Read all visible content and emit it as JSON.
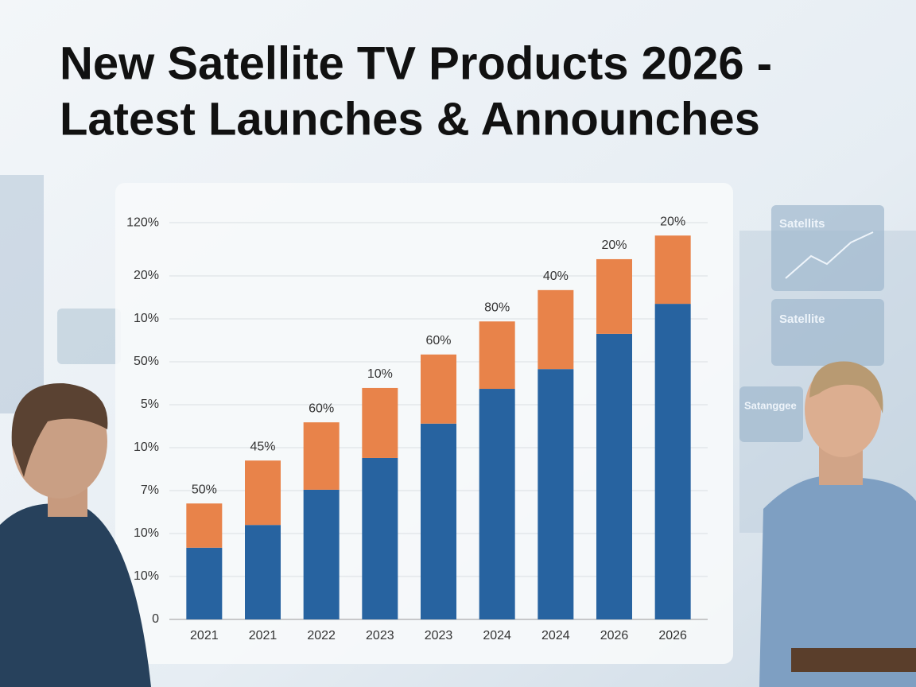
{
  "chart_data": {
    "type": "stacked_bar",
    "title": [
      "New Satellite TV Products 2026 -",
      "Latest Launches & Announches"
    ],
    "categories": [
      "2021",
      "2021",
      "2022",
      "2023",
      "2023",
      "2024",
      "2024",
      "2026",
      "2026"
    ],
    "series": [
      {
        "color": "#2763a0",
        "values": [
          16.7,
          22,
          30.2,
          37.6,
          45.6,
          53.7,
          58.3,
          66.5,
          73.5
        ]
      },
      {
        "color": "#e8834a",
        "values": [
          10.3,
          15,
          15.7,
          16.3,
          16.1,
          15.7,
          18.4,
          17.4,
          15.9
        ]
      }
    ],
    "bar_labels": [
      "50%",
      "45%",
      "60%",
      "10%",
      "60%",
      "80%",
      "40%",
      "20%",
      "20%"
    ],
    "ylim": [
      0,
      95
    ],
    "yticks": [
      0,
      {
        "value": 10,
        "label": "10%"
      },
      {
        "value": 20,
        "label": "10%"
      },
      {
        "value": 30,
        "label": "7%"
      },
      {
        "value": 40,
        "label": "10%"
      },
      {
        "value": 50,
        "label": "5%"
      },
      {
        "value": 60,
        "label": "50%"
      },
      {
        "value": 70,
        "label": "10%"
      },
      {
        "value": 80,
        "label": "20%"
      },
      {
        "value": 92.4,
        "label": "120%"
      }
    ],
    "grid": true
  },
  "decor_labels": [
    "Satellits",
    "Satellite",
    "Satanggee"
  ]
}
